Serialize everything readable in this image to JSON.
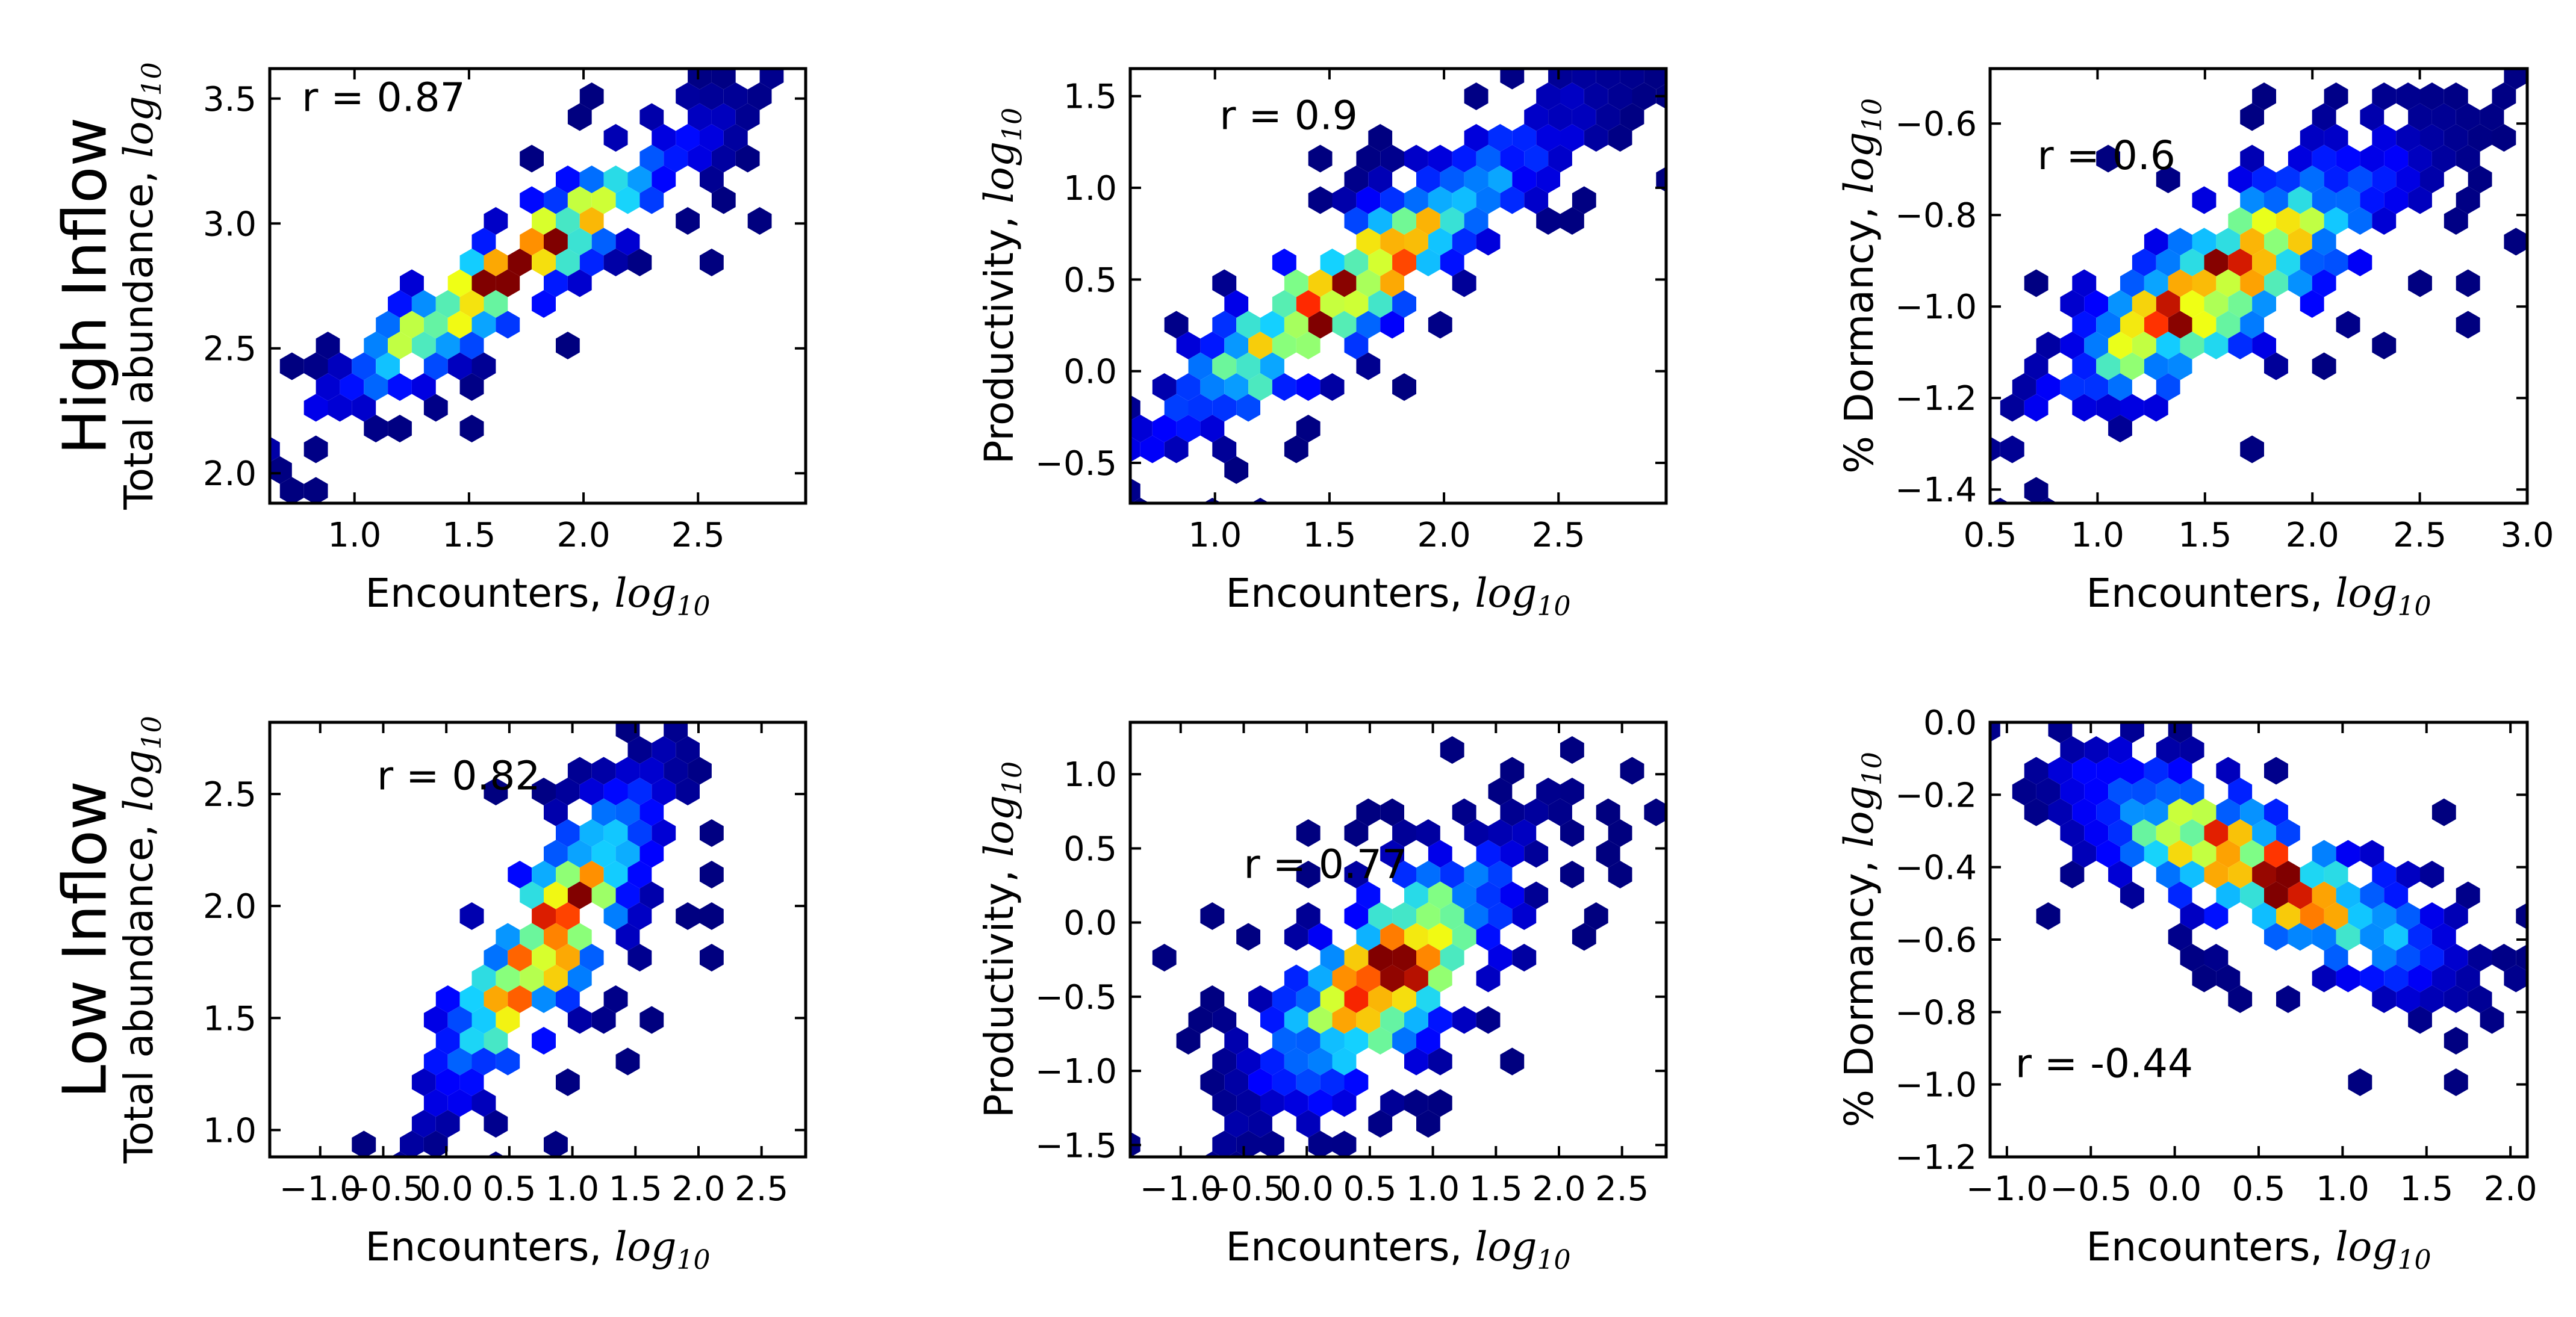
{
  "row_labels": [
    "High Inflow",
    "Low Inflow"
  ],
  "log_subscript": "log",
  "log_base": "10",
  "chart_data": [
    {
      "type": "heatmap",
      "subtype": "hexbin",
      "row": "High Inflow",
      "xlabel": "Encounters, ",
      "ylabel": "Total abundance, ",
      "xlim": [
        0.63,
        2.97
      ],
      "ylim": [
        1.88,
        3.62
      ],
      "xticks": [
        1.0,
        1.5,
        2.0,
        2.5
      ],
      "xtick_labels": [
        "1.0",
        "1.5",
        "2.0",
        "2.5"
      ],
      "yticks": [
        2.0,
        2.5,
        3.0,
        3.5
      ],
      "ytick_labels": [
        "2.0",
        "2.5",
        "3.0",
        "3.5"
      ],
      "annotation": "r = 0.87",
      "annotation_pos": [
        0.77,
        3.45
      ],
      "cluster": {
        "x0": 1.15,
        "y0": 2.45,
        "x1": 2.55,
        "y1": 3.4,
        "spread": 0.34,
        "peak": [
          1.3,
          1.65,
          1.85
        ]
      }
    },
    {
      "type": "heatmap",
      "subtype": "hexbin",
      "row": "High Inflow",
      "xlabel": "Encounters, ",
      "ylabel": "Productivity, ",
      "xlim": [
        0.63,
        2.97
      ],
      "ylim": [
        -0.72,
        1.65
      ],
      "xticks": [
        1.0,
        1.5,
        2.0,
        2.5
      ],
      "xtick_labels": [
        "1.0",
        "1.5",
        "2.0",
        "2.5"
      ],
      "yticks": [
        -0.5,
        0.0,
        0.5,
        1.0,
        1.5
      ],
      "ytick_labels": [
        "−0.5",
        "0.0",
        "0.5",
        "1.0",
        "1.5"
      ],
      "annotation": "r = 0.9",
      "annotation_pos": [
        1.02,
        1.32
      ],
      "cluster": {
        "x0": 1.05,
        "y0": -0.05,
        "x1": 2.6,
        "y1": 1.45,
        "spread": 0.42,
        "peak": [
          1.2,
          1.55,
          1.75
        ]
      }
    },
    {
      "type": "heatmap",
      "subtype": "hexbin",
      "row": "High Inflow",
      "xlabel": "Encounters, ",
      "ylabel": "% Dormancy, ",
      "xlim": [
        0.5,
        3.0
      ],
      "ylim": [
        -1.43,
        -0.48
      ],
      "xticks": [
        0.5,
        1.0,
        1.5,
        2.0,
        2.5,
        3.0
      ],
      "xtick_labels": [
        "0.5",
        "1.0",
        "1.5",
        "2.0",
        "2.5",
        "3.0"
      ],
      "yticks": [
        -1.4,
        -1.2,
        -1.0,
        -0.8,
        -0.6
      ],
      "ytick_labels": [
        "−1.4",
        "−1.2",
        "−1.0",
        "−0.8",
        "−0.6"
      ],
      "annotation": "r = 0.6",
      "annotation_pos": [
        0.72,
        -0.7
      ],
      "cluster": {
        "x0": 1.1,
        "y0": -1.1,
        "x1": 2.5,
        "y1": -0.65,
        "spread": 0.55,
        "peak": [
          1.4,
          1.55,
          1.8
        ]
      }
    },
    {
      "type": "heatmap",
      "subtype": "hexbin",
      "row": "Low Inflow",
      "xlabel": "Encounters, ",
      "ylabel": "Total abundance, ",
      "xlim": [
        -1.4,
        2.85
      ],
      "ylim": [
        0.88,
        2.82
      ],
      "xticks": [
        -1.0,
        -0.5,
        0.0,
        0.5,
        1.0,
        1.5,
        2.0,
        2.5
      ],
      "xtick_labels": [
        "−1.0",
        "−0.5",
        "0.0",
        "0.5",
        "1.0",
        "1.5",
        "2.0",
        "2.5"
      ],
      "yticks": [
        1.0,
        1.5,
        2.0,
        2.5
      ],
      "ytick_labels": [
        "1.0",
        "1.5",
        "2.0",
        "2.5"
      ],
      "annotation": "r = 0.82",
      "annotation_pos": [
        -0.55,
        2.52
      ],
      "cluster": {
        "x0": 0.1,
        "y0": 1.25,
        "x1": 1.5,
        "y1": 2.45,
        "spread": 0.45,
        "peak": [
          0.6,
          0.8,
          1.0
        ]
      }
    },
    {
      "type": "heatmap",
      "subtype": "hexbin",
      "row": "Low Inflow",
      "xlabel": "Encounters, ",
      "ylabel": "Productivity, ",
      "xlim": [
        -1.4,
        2.85
      ],
      "ylim": [
        -1.58,
        1.35
      ],
      "xticks": [
        -1.0,
        -0.5,
        0.0,
        0.5,
        1.0,
        1.5,
        2.0,
        2.5
      ],
      "xtick_labels": [
        "−1.0",
        "−0.5",
        "0.0",
        "0.5",
        "1.0",
        "1.5",
        "2.0",
        "2.5"
      ],
      "yticks": [
        -1.5,
        -1.0,
        -0.5,
        0.0,
        0.5,
        1.0
      ],
      "ytick_labels": [
        "−1.5",
        "−1.0",
        "−0.5",
        "0.0",
        "0.5",
        "1.0"
      ],
      "annotation": "r = 0.77",
      "annotation_pos": [
        -0.5,
        0.3
      ],
      "cluster": {
        "x0": -0.2,
        "y0": -1.1,
        "x1": 1.4,
        "y1": 0.3,
        "spread": 0.55,
        "peak": [
          0.45,
          0.65,
          0.85
        ]
      }
    },
    {
      "type": "heatmap",
      "subtype": "hexbin",
      "row": "Low Inflow",
      "xlabel": "Encounters, ",
      "ylabel": "% Dormancy, ",
      "xlim": [
        -1.1,
        2.1
      ],
      "ylim": [
        -1.2,
        0.0
      ],
      "xticks": [
        -1.0,
        -0.5,
        0.0,
        0.5,
        1.0,
        1.5,
        2.0
      ],
      "xtick_labels": [
        "−1.0",
        "−0.5",
        "0.0",
        "0.5",
        "1.0",
        "1.5",
        "2.0"
      ],
      "yticks": [
        -1.2,
        -1.0,
        -0.8,
        -0.6,
        -0.4,
        -0.2,
        0.0
      ],
      "ytick_labels": [
        "−1.2",
        "−1.0",
        "−0.8",
        "−0.6",
        "−0.4",
        "−0.2",
        "0.0"
      ],
      "annotation": "r = -0.44",
      "annotation_pos": [
        -0.95,
        -0.98
      ],
      "cluster": {
        "x0": -0.4,
        "y0": -0.2,
        "x1": 1.5,
        "y1": -0.65,
        "spread": 0.5,
        "peak": [
          0.2,
          0.5,
          0.9
        ]
      }
    }
  ]
}
